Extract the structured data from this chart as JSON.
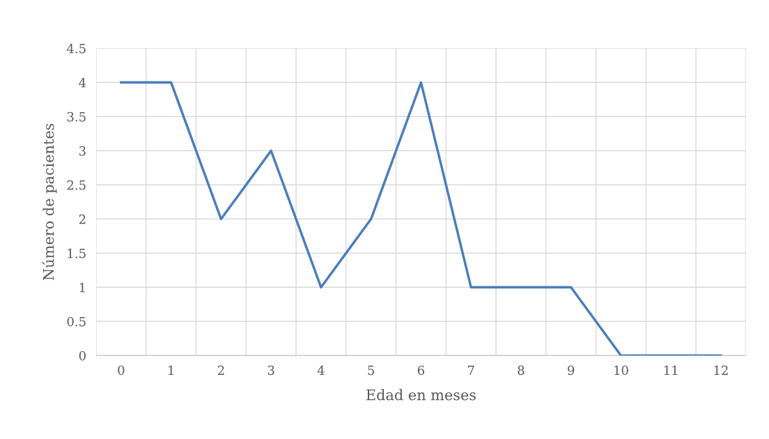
{
  "chart_data": {
    "type": "line",
    "xlabel": "Edad en meses",
    "ylabel": "Número de pacientes",
    "categories": [
      "0",
      "1",
      "2",
      "3",
      "4",
      "5",
      "6",
      "7",
      "8",
      "9",
      "10",
      "11",
      "12"
    ],
    "series": [
      {
        "color": "#4a7ebb",
        "values": [
          4,
          4,
          2,
          3,
          1,
          2,
          4,
          1,
          1,
          1,
          0,
          0,
          0
        ]
      }
    ],
    "ylim": [
      0,
      4.5
    ],
    "yticks": [
      0,
      0.5,
      1,
      1.5,
      2,
      2.5,
      3,
      3.5,
      4,
      4.5
    ],
    "grid": true,
    "legend": false,
    "marker": "none",
    "line_style": "solid"
  }
}
